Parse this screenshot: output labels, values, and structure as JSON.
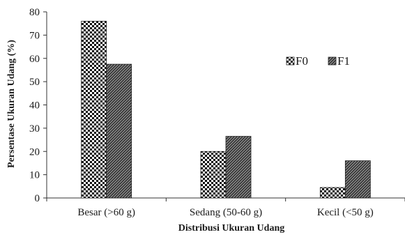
{
  "chart_data": {
    "type": "bar",
    "categories": [
      "Besar (>60 g)",
      "Sedang (50-60 g)",
      "Kecil (<50 g)"
    ],
    "series": [
      {
        "name": "F0",
        "values": [
          76,
          20,
          4.5
        ],
        "pattern": "checker"
      },
      {
        "name": "F1",
        "values": [
          57.5,
          26.5,
          16
        ],
        "pattern": "diagonal"
      }
    ],
    "xlabel": "Distribusi Ukuran Udang",
    "ylabel": "Persentase Ukuran Udang (%)",
    "ylim": [
      0,
      80
    ],
    "yticks": [
      0,
      10,
      20,
      30,
      40,
      50,
      60,
      70,
      80
    ],
    "grid": false,
    "legend_position": "right",
    "colors": {
      "bar_dark": "#111111",
      "bar_light": "#ffffff",
      "axis": "#333333"
    }
  }
}
